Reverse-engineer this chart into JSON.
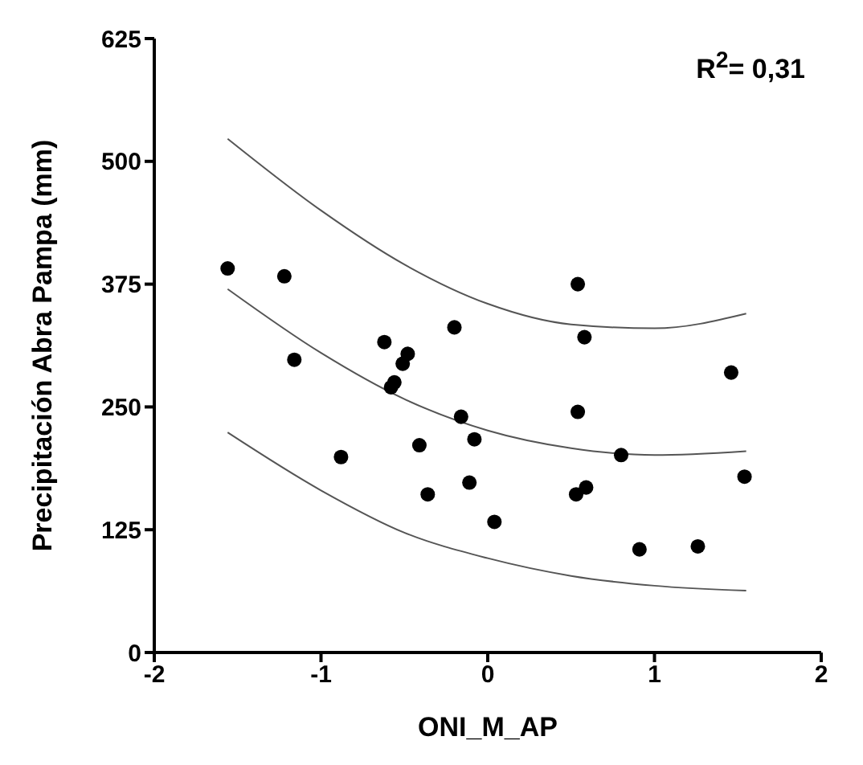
{
  "chart_data": {
    "type": "scatter",
    "xlabel": "ONI_M_AP",
    "ylabel": "Precipitación Abra Pampa (mm)",
    "annotations": [
      "R$^{2}$= 0,31"
    ],
    "xlim": [
      -2,
      2
    ],
    "xticks": [
      -2,
      -1,
      0,
      1,
      2
    ],
    "ylim": [
      0,
      625
    ],
    "yticks": [
      0,
      125,
      250,
      375,
      500,
      625
    ],
    "grid": false,
    "series": [
      {
        "color": "#000000",
        "marker": "circle",
        "x": [
          -1.56,
          -1.22,
          -1.16,
          -0.88,
          -0.62,
          -0.48,
          -0.51,
          -0.56,
          -0.58,
          -0.2,
          -0.16,
          -0.08,
          -0.41,
          -0.11,
          -0.36,
          0.04,
          0.54,
          0.58,
          1.46,
          0.54,
          0.8,
          1.54,
          0.59,
          0.53,
          0.91,
          1.26
        ],
        "values": [
          391,
          383,
          298,
          199,
          316,
          304,
          294,
          275,
          270,
          331,
          240,
          217,
          211,
          173,
          161,
          133,
          375,
          321,
          285,
          245,
          201,
          179,
          168,
          161,
          105,
          108
        ]
      },
      {
        "type": "line",
        "color": "#555555",
        "marker": "none",
        "x": [
          -1.56,
          -1,
          -0.5,
          0,
          0.5,
          1,
          1.55
        ],
        "values": [
          523,
          450,
          395,
          355,
          334,
          330,
          345
        ]
      },
      {
        "type": "line",
        "color": "#555555",
        "marker": "none",
        "x": [
          -1.56,
          -1,
          -0.5,
          0,
          0.5,
          1,
          1.55
        ],
        "values": [
          370,
          305,
          258,
          226,
          208,
          201,
          205
        ]
      },
      {
        "type": "line",
        "color": "#555555",
        "marker": "none",
        "x": [
          -1.56,
          -1,
          -0.5,
          0,
          0.5,
          1,
          1.55
        ],
        "values": [
          224,
          165,
          122,
          96,
          78,
          68,
          63
        ]
      }
    ]
  }
}
